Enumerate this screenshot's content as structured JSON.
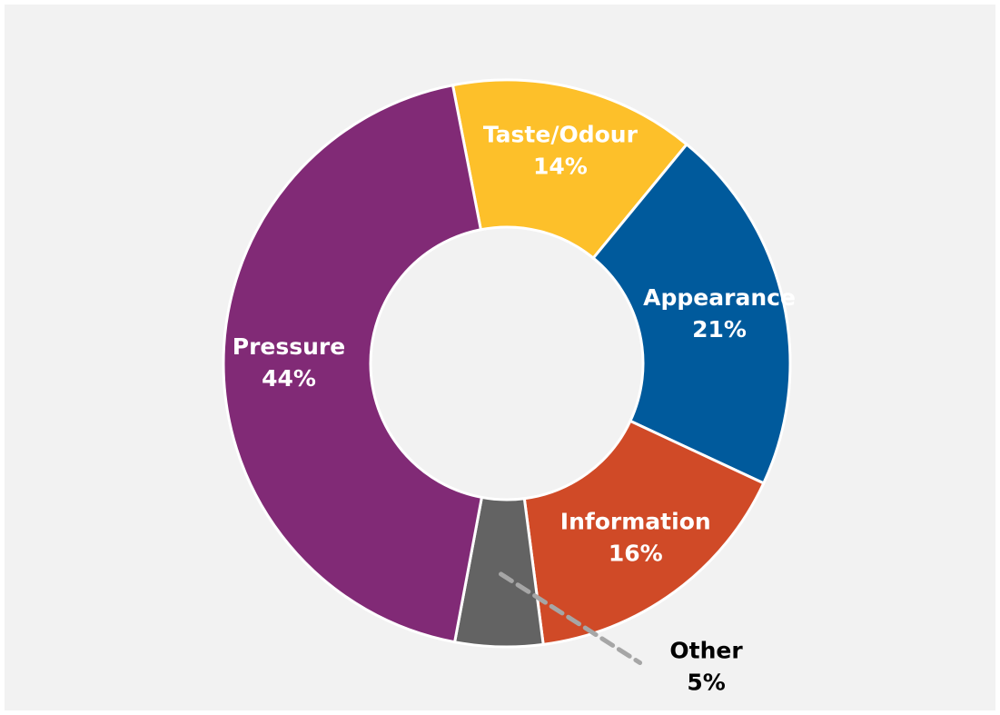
{
  "chart_data": {
    "type": "donut",
    "categories": [
      "Taste/Odour",
      "Appearance",
      "Information",
      "Other",
      "Pressure"
    ],
    "values": [
      14,
      21,
      16,
      5,
      44
    ],
    "value_labels": [
      "14%",
      "21%",
      "16%",
      "5%",
      "44%"
    ],
    "colors": [
      "#fdc02a",
      "#005a9c",
      "#d04a27",
      "#636363",
      "#812a76"
    ]
  }
}
